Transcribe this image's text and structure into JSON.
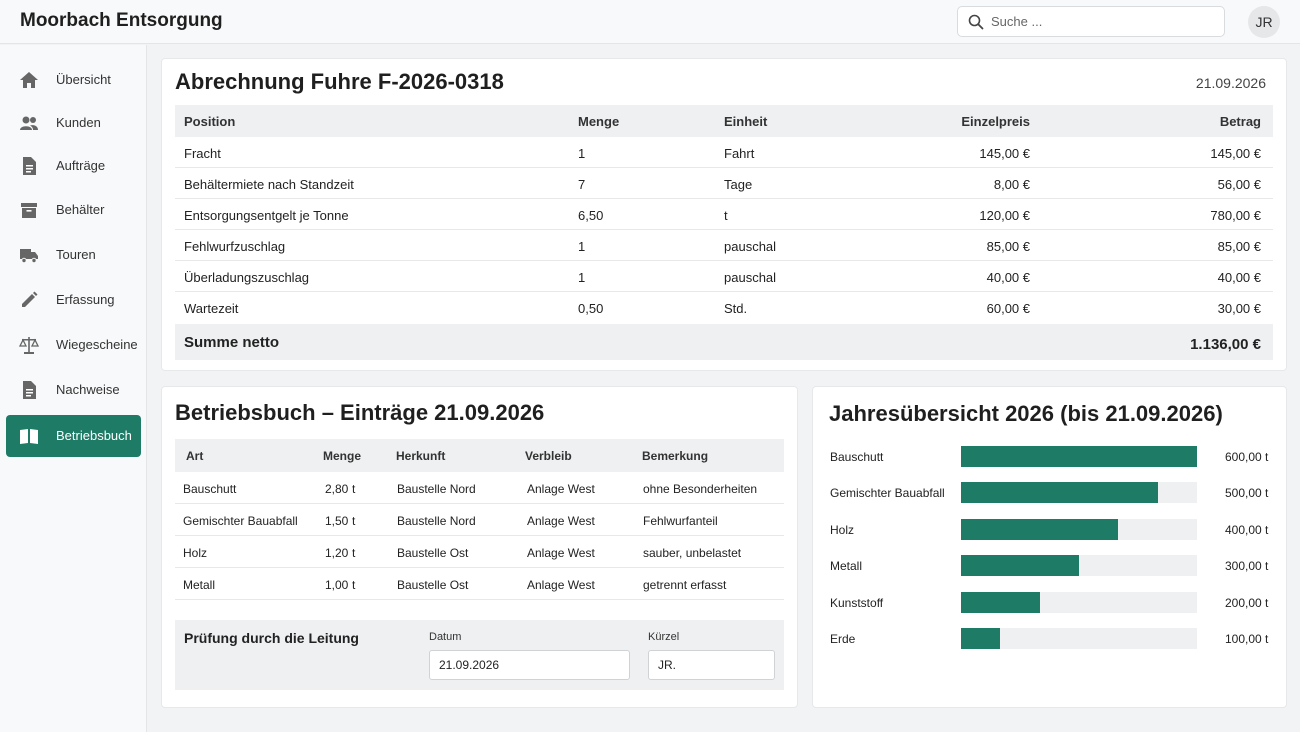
{
  "app": {
    "title": "Moorbach Entsorgung",
    "avatar_initials": "JR"
  },
  "search": {
    "placeholder": "Suche ..."
  },
  "sidebar": {
    "items": [
      {
        "label": "Übersicht",
        "icon": "home-icon"
      },
      {
        "label": "Kunden",
        "icon": "people-icon"
      },
      {
        "label": "Aufträge",
        "icon": "document-icon"
      },
      {
        "label": "Behälter",
        "icon": "container-icon"
      },
      {
        "label": "Touren",
        "icon": "truck-icon"
      },
      {
        "label": "Erfassung",
        "icon": "pencil-icon"
      },
      {
        "label": "Wiegescheine",
        "icon": "scale-icon"
      },
      {
        "label": "Nachweise",
        "icon": "document-icon"
      },
      {
        "label": "Betriebsbuch",
        "icon": "book-icon",
        "active": true
      }
    ]
  },
  "invoice": {
    "title": "Abrechnung Fuhre F-2026-0318",
    "date": "21.09.2026",
    "headers": {
      "position": "Position",
      "menge": "Menge",
      "einheit": "Einheit",
      "einzelpreis": "Einzelpreis",
      "betrag": "Betrag"
    },
    "rows": [
      {
        "position": "Fracht",
        "menge": "1",
        "einheit": "Fahrt",
        "einzelpreis": "145,00 €",
        "betrag": "145,00 €"
      },
      {
        "position": "Behältermiete nach Standzeit",
        "menge": "7",
        "einheit": "Tage",
        "einzelpreis": "8,00 €",
        "betrag": "56,00 €"
      },
      {
        "position": "Entsorgungsentgelt je Tonne",
        "menge": "6,50",
        "einheit": "t",
        "einzelpreis": "120,00 €",
        "betrag": "780,00 €"
      },
      {
        "position": "Fehlwurfzuschlag",
        "menge": "1",
        "einheit": "pauschal",
        "einzelpreis": "85,00 €",
        "betrag": "85,00 €"
      },
      {
        "position": "Überladungszuschlag",
        "menge": "1",
        "einheit": "pauschal",
        "einzelpreis": "40,00 €",
        "betrag": "40,00 €"
      },
      {
        "position": "Wartezeit",
        "menge": "0,50",
        "einheit": "Std.",
        "einzelpreis": "60,00 €",
        "betrag": "30,00 €"
      }
    ],
    "sum_label": "Summe netto",
    "sum_value": "1.136,00 €"
  },
  "betriebsbuch": {
    "title": "Betriebsbuch – Einträge 21.09.2026",
    "headers": {
      "art": "Art",
      "menge": "Menge",
      "herkunft": "Herkunft",
      "verbleib": "Verbleib",
      "bemerkung": "Bemerkung"
    },
    "rows": [
      {
        "art": "Bauschutt",
        "menge": "2,80",
        "unit": "t",
        "herkunft": "Baustelle Nord",
        "verbleib": "Anlage West",
        "bemerkung": "ohne Besonderheiten"
      },
      {
        "art": "Gemischter Bauabfall",
        "menge": "1,50",
        "unit": "t",
        "herkunft": "Baustelle Nord",
        "verbleib": "Anlage West",
        "bemerkung": "Fehlwurfanteil"
      },
      {
        "art": "Holz",
        "menge": "1,20",
        "unit": "t",
        "herkunft": "Baustelle Ost",
        "verbleib": "Anlage West",
        "bemerkung": "sauber, unbelastet"
      },
      {
        "art": "Metall",
        "menge": "1,00",
        "unit": "t",
        "herkunft": "Baustelle Ost",
        "verbleib": "Anlage West",
        "bemerkung": "getrennt erfasst"
      }
    ],
    "pruefung": {
      "title": "Prüfung durch die Leitung",
      "datum_label": "Datum",
      "datum_value": "21.09.2026",
      "kuerzel_label": "Kürzel",
      "kuerzel_value": "JR."
    }
  },
  "jahresuebersicht": {
    "title": "Jahresübersicht 2026 (bis 21.09.2026)",
    "accent_color": "#1e7b66",
    "max": 600,
    "items": [
      {
        "label": "Bauschutt",
        "value": 600,
        "display": "600,00 t"
      },
      {
        "label": "Gemischter Bauabfall",
        "value": 500,
        "display": "500,00 t"
      },
      {
        "label": "Holz",
        "value": 400,
        "display": "400,00 t"
      },
      {
        "label": "Metall",
        "value": 300,
        "display": "300,00 t"
      },
      {
        "label": "Kunststoff",
        "value": 200,
        "display": "200,00 t"
      },
      {
        "label": "Erde",
        "value": 100,
        "display": "100,00 t"
      }
    ]
  }
}
